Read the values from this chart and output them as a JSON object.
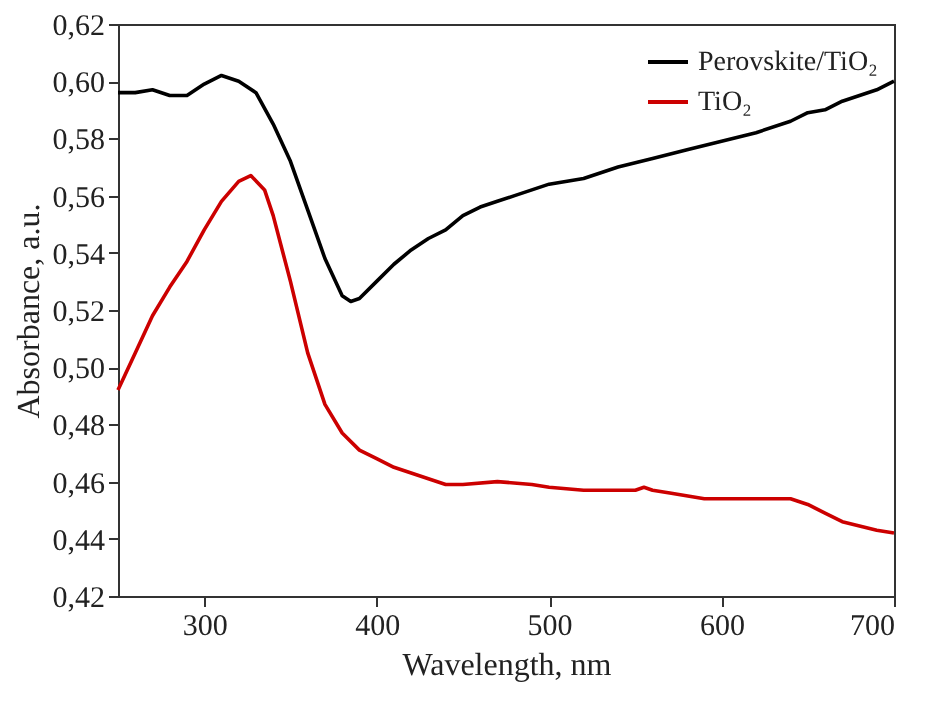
{
  "chart_data": {
    "type": "line",
    "xlabel": "Wavelength, nm",
    "ylabel": "Absorbance, a.u.",
    "xlim": [
      250,
      700
    ],
    "xticks": [
      300,
      400,
      500,
      600,
      700
    ],
    "ylim": [
      0.42,
      0.62
    ],
    "yticks": [
      {
        "value": 0.42,
        "label": "0,42"
      },
      {
        "value": 0.44,
        "label": "0,44"
      },
      {
        "value": 0.46,
        "label": "0,46"
      },
      {
        "value": 0.48,
        "label": "0,48"
      },
      {
        "value": 0.5,
        "label": "0,50"
      },
      {
        "value": 0.52,
        "label": "0,52"
      },
      {
        "value": 0.54,
        "label": "0,54"
      },
      {
        "value": 0.56,
        "label": "0,56"
      },
      {
        "value": 0.58,
        "label": "0,58"
      },
      {
        "value": 0.6,
        "label": "0,60"
      },
      {
        "value": 0.62,
        "label": "0,62"
      }
    ],
    "legend": "top right",
    "grid": false,
    "marker": "none",
    "line_style": "solid",
    "series": [
      {
        "name": "Perovskite/TiO₂",
        "color": "#000000",
        "x": [
          250,
          260,
          270,
          280,
          290,
          300,
          310,
          320,
          330,
          340,
          350,
          360,
          370,
          380,
          385,
          390,
          400,
          410,
          420,
          430,
          440,
          450,
          460,
          470,
          480,
          490,
          500,
          520,
          540,
          560,
          580,
          600,
          620,
          640,
          650,
          660,
          670,
          680,
          690,
          700
        ],
        "values": [
          0.596,
          0.596,
          0.597,
          0.595,
          0.595,
          0.599,
          0.602,
          0.6,
          0.596,
          0.585,
          0.572,
          0.555,
          0.538,
          0.525,
          0.523,
          0.524,
          0.53,
          0.536,
          0.541,
          0.545,
          0.548,
          0.553,
          0.556,
          0.558,
          0.56,
          0.562,
          0.564,
          0.566,
          0.57,
          0.573,
          0.576,
          0.579,
          0.582,
          0.586,
          0.589,
          0.59,
          0.593,
          0.595,
          0.597,
          0.6
        ]
      },
      {
        "name": "TiO₂",
        "color": "#cc0000",
        "x": [
          250,
          260,
          270,
          280,
          290,
          300,
          310,
          320,
          327,
          335,
          340,
          350,
          360,
          370,
          380,
          390,
          400,
          410,
          420,
          430,
          440,
          450,
          470,
          490,
          500,
          520,
          550,
          555,
          560,
          570,
          590,
          600,
          620,
          630,
          640,
          650,
          660,
          670,
          690,
          700
        ],
        "values": [
          0.492,
          0.505,
          0.518,
          0.528,
          0.537,
          0.548,
          0.558,
          0.565,
          0.567,
          0.562,
          0.553,
          0.53,
          0.505,
          0.487,
          0.477,
          0.471,
          0.468,
          0.465,
          0.463,
          0.461,
          0.459,
          0.459,
          0.46,
          0.459,
          0.458,
          0.457,
          0.457,
          0.458,
          0.457,
          0.456,
          0.454,
          0.454,
          0.454,
          0.454,
          0.454,
          0.452,
          0.449,
          0.446,
          0.443,
          0.442
        ]
      }
    ]
  }
}
